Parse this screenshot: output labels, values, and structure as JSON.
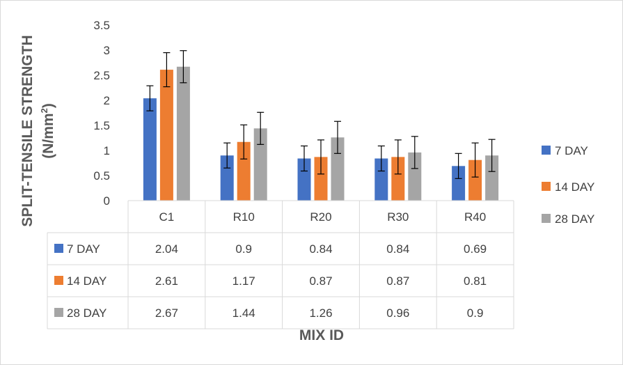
{
  "chart_data": {
    "type": "bar",
    "categories": [
      "C1",
      "R10",
      "R20",
      "R30",
      "R40"
    ],
    "series": [
      {
        "name": "7 DAY",
        "values": [
          2.04,
          0.9,
          0.84,
          0.84,
          0.69
        ],
        "error": [
          0.25,
          0.25,
          0.25,
          0.25,
          0.25
        ],
        "color": "#4472c4"
      },
      {
        "name": "14 DAY",
        "values": [
          2.61,
          1.17,
          0.87,
          0.87,
          0.81
        ],
        "error": [
          0.34,
          0.34,
          0.34,
          0.34,
          0.34
        ],
        "color": "#ed7d31"
      },
      {
        "name": "28 DAY",
        "values": [
          2.67,
          1.44,
          1.26,
          0.96,
          0.9
        ],
        "error": [
          0.32,
          0.32,
          0.32,
          0.32,
          0.32
        ],
        "color": "#a5a5a5"
      }
    ],
    "yticks": [
      "0",
      "0.5",
      "1",
      "1.5",
      "2",
      "2.5",
      "3",
      "3.5"
    ],
    "ylim": [
      0,
      3.5
    ],
    "ylabel_line1": "SPLIT-TENSILE STRENGTH",
    "ylabel_line2_prefix": "(N/mm",
    "ylabel_line2_sup": "2",
    "ylabel_line2_suffix": ")",
    "xlabel": "MIX ID",
    "table": {
      "rows": [
        {
          "label": "7 DAY",
          "cells": [
            "2.04",
            "0.9",
            "0.84",
            "0.84",
            "0.69"
          ]
        },
        {
          "label": "14 DAY",
          "cells": [
            "2.61",
            "1.17",
            "0.87",
            "0.87",
            "0.81"
          ]
        },
        {
          "label": "28 DAY",
          "cells": [
            "2.67",
            "1.44",
            "1.26",
            "0.96",
            "0.9"
          ]
        }
      ]
    },
    "legend_position": "right",
    "grid": false
  }
}
